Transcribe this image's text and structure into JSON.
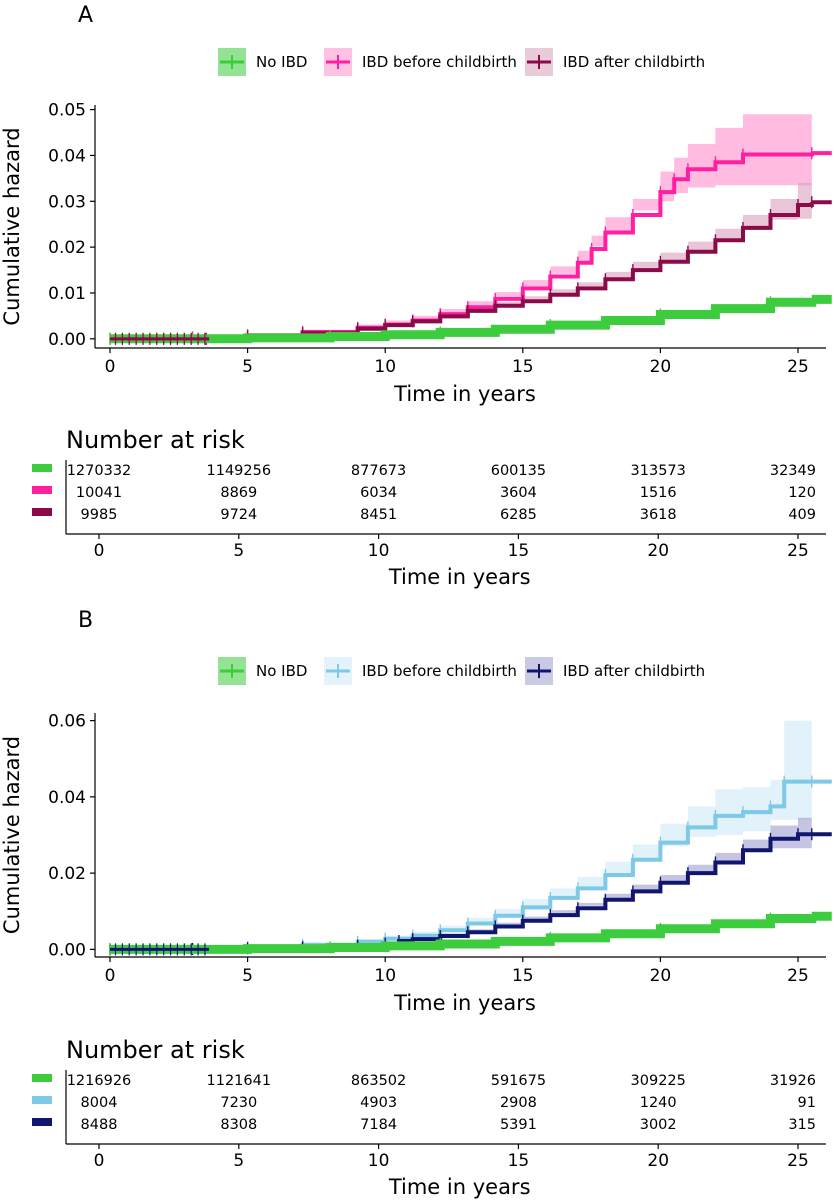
{
  "figure": {
    "type": "kaplan-meier cumulative hazard with risk tables"
  },
  "chart_data": [
    {
      "type": "line",
      "panel_label": "A",
      "xlabel": "Time in years",
      "ylabel": "Cumulative hazard",
      "xlim": [
        0,
        25.6
      ],
      "ylim": [
        -0.002,
        0.051
      ],
      "xticks": [
        0,
        5,
        10,
        15,
        20,
        25
      ],
      "yticks": [
        0.0,
        0.01,
        0.02,
        0.03,
        0.04,
        0.05
      ],
      "ytick_labels": [
        "0.00",
        "0.01",
        "0.02",
        "0.03",
        "0.04",
        "0.05"
      ],
      "legend": {
        "placement": "top",
        "entries": [
          "No IBD",
          "IBD before childbirth",
          "IBD after childbirth"
        ]
      },
      "series": [
        {
          "name": "No IBD",
          "color": "#3dcc3d",
          "x": [
            0,
            5,
            8,
            10,
            12,
            14,
            16,
            18,
            20,
            22,
            24,
            25.5
          ],
          "y": [
            0,
            0.0002,
            0.0005,
            0.0009,
            0.0014,
            0.0021,
            0.003,
            0.004,
            0.0053,
            0.0066,
            0.008,
            0.0086
          ],
          "ci_low": [
            0,
            0.0001,
            0.0004,
            0.0008,
            0.0012,
            0.0019,
            0.0027,
            0.0037,
            0.0049,
            0.0062,
            0.0075,
            0.008
          ],
          "ci_high": [
            0,
            0.0003,
            0.0006,
            0.001,
            0.0016,
            0.0023,
            0.0033,
            0.0043,
            0.0057,
            0.007,
            0.0085,
            0.0092
          ]
        },
        {
          "name": "IBD before childbirth",
          "color": "#ff1fa0",
          "ci_color": "#ff8fcc",
          "x": [
            0,
            3,
            5,
            7,
            9,
            10,
            11,
            12,
            13,
            14,
            15,
            16,
            17,
            17.5,
            18,
            19,
            20,
            20.5,
            21,
            22,
            23,
            25.5
          ],
          "y": [
            0,
            0.0003,
            0.0008,
            0.0015,
            0.0024,
            0.0031,
            0.004,
            0.0054,
            0.0069,
            0.0087,
            0.011,
            0.0136,
            0.0166,
            0.0196,
            0.0232,
            0.027,
            0.032,
            0.0348,
            0.037,
            0.0385,
            0.0402,
            0.0405
          ],
          "ci_low": [
            0,
            0.0001,
            0.0004,
            0.001,
            0.0017,
            0.0023,
            0.0031,
            0.0043,
            0.0056,
            0.0072,
            0.0092,
            0.0115,
            0.0142,
            0.017,
            0.0202,
            0.0236,
            0.028,
            0.03,
            0.0318,
            0.033,
            0.0335,
            0.0335
          ],
          "ci_high": [
            0,
            0.0005,
            0.0012,
            0.002,
            0.0031,
            0.004,
            0.005,
            0.0065,
            0.0082,
            0.0102,
            0.0128,
            0.0158,
            0.0192,
            0.0225,
            0.0265,
            0.0305,
            0.0365,
            0.0395,
            0.0425,
            0.046,
            0.049,
            0.049
          ]
        },
        {
          "name": "IBD after childbirth",
          "color": "#8b0a4a",
          "ci_color": "#d9a0bc",
          "x": [
            3.5,
            5,
            7,
            9,
            10,
            11,
            12,
            13,
            14,
            15,
            16,
            17,
            18,
            19,
            20,
            21,
            22,
            23,
            24,
            25,
            25.5
          ],
          "y": [
            0,
            0.0005,
            0.0012,
            0.0022,
            0.003,
            0.0038,
            0.0049,
            0.0061,
            0.0072,
            0.0082,
            0.0096,
            0.011,
            0.013,
            0.015,
            0.0168,
            0.019,
            0.0215,
            0.0242,
            0.027,
            0.0292,
            0.0298
          ],
          "ci_low": [
            0,
            0.0003,
            0.0009,
            0.0018,
            0.0025,
            0.0032,
            0.0042,
            0.0053,
            0.0063,
            0.0072,
            0.0085,
            0.0098,
            0.0115,
            0.0133,
            0.015,
            0.017,
            0.0192,
            0.0217,
            0.0242,
            0.026,
            0.0262
          ],
          "ci_high": [
            0,
            0.0007,
            0.0015,
            0.0026,
            0.0035,
            0.0044,
            0.0056,
            0.0069,
            0.0081,
            0.0093,
            0.0108,
            0.0123,
            0.0146,
            0.0168,
            0.0188,
            0.0212,
            0.024,
            0.027,
            0.0305,
            0.034,
            0.0355
          ]
        }
      ],
      "risk_table": {
        "title": "Number at risk",
        "xlabel": "Time in years",
        "times": [
          0,
          5,
          10,
          15,
          20,
          25
        ],
        "rows": [
          {
            "color": "#3dcc3d",
            "values": [
              "1270332",
              "1149256",
              "877673",
              "600135",
              "313573",
              "32349"
            ]
          },
          {
            "color": "#ff1fa0",
            "values": [
              "10041",
              "8869",
              "6034",
              "3604",
              "1516",
              "120"
            ]
          },
          {
            "color": "#8b0a4a",
            "values": [
              "9985",
              "9724",
              "8451",
              "6285",
              "3618",
              "409"
            ]
          }
        ]
      }
    },
    {
      "type": "line",
      "panel_label": "B",
      "xlabel": "Time in years",
      "ylabel": "Cumulative hazard",
      "xlim": [
        0,
        25.6
      ],
      "ylim": [
        -0.002,
        0.062
      ],
      "xticks": [
        0,
        5,
        10,
        15,
        20,
        25
      ],
      "yticks": [
        0.0,
        0.02,
        0.04,
        0.06
      ],
      "ytick_labels": [
        "0.00",
        "0.02",
        "0.04",
        "0.06"
      ],
      "legend": {
        "placement": "top",
        "entries": [
          "No IBD",
          "IBD before childbirth",
          "IBD after childbirth"
        ]
      },
      "series": [
        {
          "name": "No IBD",
          "color": "#3dcc3d",
          "x": [
            0,
            5,
            8,
            10,
            12,
            14,
            16,
            18,
            20,
            22,
            24,
            25.5
          ],
          "y": [
            0,
            0.0002,
            0.0005,
            0.0009,
            0.0014,
            0.0021,
            0.003,
            0.0041,
            0.0054,
            0.0067,
            0.0081,
            0.0087
          ],
          "ci_low": [
            0,
            0.0001,
            0.0004,
            0.0008,
            0.0012,
            0.0019,
            0.0027,
            0.0038,
            0.005,
            0.0063,
            0.0076,
            0.0081
          ],
          "ci_high": [
            0,
            0.0003,
            0.0006,
            0.001,
            0.0016,
            0.0023,
            0.0033,
            0.0044,
            0.0058,
            0.0071,
            0.0086,
            0.0093
          ]
        },
        {
          "name": "IBD before childbirth",
          "color": "#7ec8e8",
          "ci_color": "#cde9f7",
          "x": [
            0,
            3,
            5,
            7,
            9,
            10,
            11,
            12,
            13,
            14,
            15,
            16,
            17,
            18,
            19,
            20,
            21,
            22,
            23,
            24,
            24.5,
            25.5
          ],
          "y": [
            0,
            0.0002,
            0.0006,
            0.0012,
            0.002,
            0.0028,
            0.0036,
            0.005,
            0.0068,
            0.0088,
            0.011,
            0.0135,
            0.016,
            0.0195,
            0.0235,
            0.028,
            0.032,
            0.035,
            0.036,
            0.0375,
            0.044,
            0.044
          ],
          "ci_low": [
            0,
            0.0001,
            0.0003,
            0.0008,
            0.0014,
            0.002,
            0.0027,
            0.0039,
            0.0054,
            0.0071,
            0.009,
            0.0112,
            0.0134,
            0.0163,
            0.0198,
            0.0236,
            0.027,
            0.0295,
            0.03,
            0.031,
            0.034,
            0.034
          ],
          "ci_high": [
            0,
            0.0004,
            0.0009,
            0.0017,
            0.0027,
            0.0036,
            0.0046,
            0.0062,
            0.0083,
            0.0106,
            0.0132,
            0.016,
            0.019,
            0.023,
            0.0275,
            0.033,
            0.0375,
            0.042,
            0.0425,
            0.0445,
            0.06,
            0.06
          ]
        },
        {
          "name": "IBD after childbirth",
          "color": "#10166e",
          "ci_color": "#9e9fd0",
          "x": [
            0,
            3,
            5,
            7,
            9,
            10,
            10.5,
            11,
            12,
            13,
            14,
            15,
            16,
            17,
            18,
            19,
            20,
            21,
            22,
            23,
            24,
            25,
            25.5
          ],
          "y": [
            0,
            0.0001,
            0.0003,
            0.0006,
            0.001,
            0.0015,
            0.0022,
            0.0027,
            0.0035,
            0.0045,
            0.006,
            0.0075,
            0.009,
            0.0108,
            0.013,
            0.0152,
            0.0175,
            0.02,
            0.0228,
            0.026,
            0.029,
            0.0302,
            0.0302
          ],
          "ci_low": [
            0,
            0.0,
            0.0002,
            0.0004,
            0.0007,
            0.0011,
            0.0017,
            0.0021,
            0.0028,
            0.0037,
            0.005,
            0.0064,
            0.0077,
            0.0094,
            0.0114,
            0.0134,
            0.0155,
            0.0178,
            0.0203,
            0.0232,
            0.0258,
            0.0265,
            0.0265
          ],
          "ci_high": [
            0,
            0.0002,
            0.0004,
            0.0008,
            0.0013,
            0.0019,
            0.0027,
            0.0033,
            0.0042,
            0.0053,
            0.007,
            0.0086,
            0.0103,
            0.0122,
            0.0146,
            0.017,
            0.0195,
            0.0222,
            0.0253,
            0.0288,
            0.0325,
            0.0345,
            0.0345
          ]
        }
      ],
      "risk_table": {
        "title": "Number at risk",
        "xlabel": "Time in years",
        "times": [
          0,
          5,
          10,
          15,
          20,
          25
        ],
        "rows": [
          {
            "color": "#3dcc3d",
            "values": [
              "1216926",
              "1121641",
              "863502",
              "591675",
              "309225",
              "31926"
            ]
          },
          {
            "color": "#7ec8e8",
            "values": [
              "8004",
              "7230",
              "4903",
              "2908",
              "1240",
              "91"
            ]
          },
          {
            "color": "#10166e",
            "values": [
              "8488",
              "8308",
              "7184",
              "5391",
              "3002",
              "315"
            ]
          }
        ]
      }
    }
  ]
}
